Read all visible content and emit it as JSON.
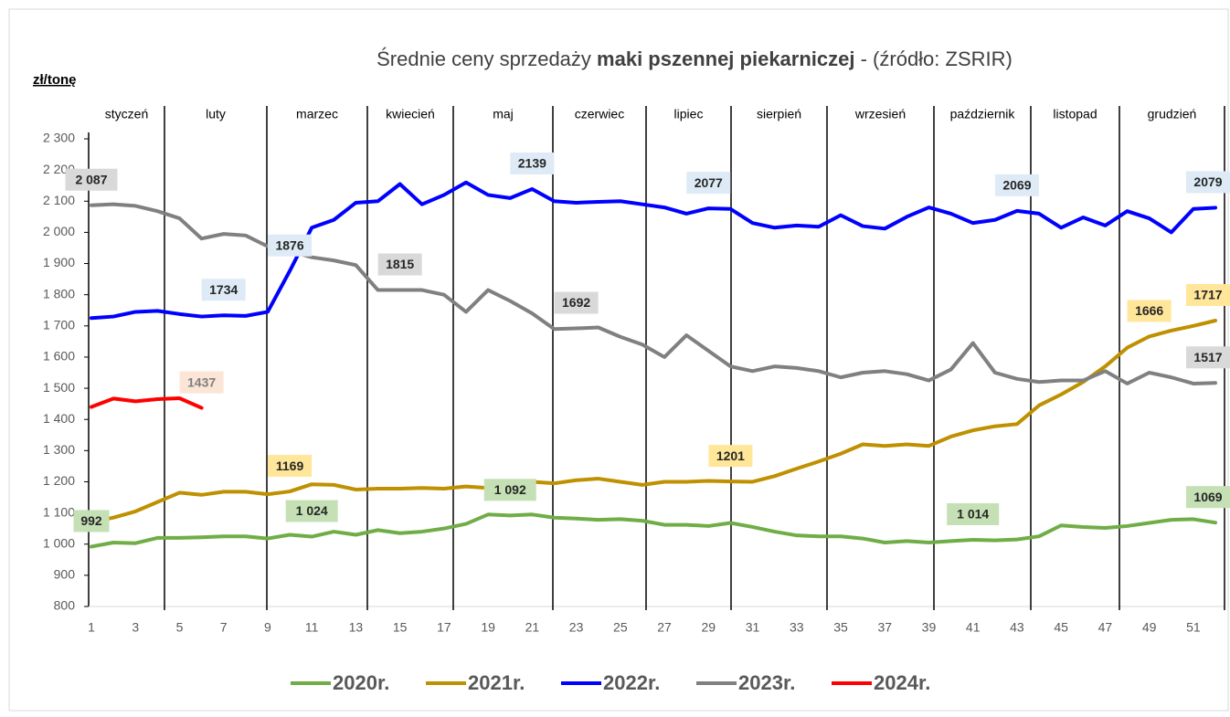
{
  "chart_data": {
    "type": "line",
    "title_parts": [
      "Średnie ceny sprzedaży ",
      "maki pszennej piekarniczej",
      " - (źródło: ZSRIR)"
    ],
    "y_label": "zł/tonę",
    "months": [
      "styczeń",
      "luty",
      "marzec",
      "kwiecień",
      "maj",
      "czerwiec",
      "lipiec",
      "sierpień",
      "wrzesień",
      "październik",
      "listopad",
      "grudzień"
    ],
    "x": [
      1,
      2,
      3,
      4,
      5,
      6,
      7,
      8,
      9,
      10,
      11,
      12,
      13,
      14,
      15,
      16,
      17,
      18,
      19,
      20,
      21,
      22,
      23,
      24,
      25,
      26,
      27,
      28,
      29,
      30,
      31,
      32,
      33,
      34,
      35,
      36,
      37,
      38,
      39,
      40,
      41,
      42,
      43,
      44,
      45,
      46,
      47,
      48,
      49,
      50,
      51,
      52
    ],
    "xlim": [
      1,
      52
    ],
    "xticks": [
      1,
      3,
      5,
      7,
      9,
      11,
      13,
      15,
      17,
      19,
      21,
      23,
      25,
      27,
      29,
      31,
      33,
      35,
      37,
      39,
      41,
      43,
      45,
      47,
      49,
      51
    ],
    "ylim": [
      800,
      2300
    ],
    "yticks": [
      800,
      900,
      {
        "value": 1000,
        "label": "1 000"
      },
      {
        "value": 1100,
        "label": "1 100"
      },
      {
        "value": 1200,
        "label": "1 200"
      },
      {
        "value": 1300,
        "label": "1 300"
      },
      {
        "value": 1400,
        "label": "1 400"
      },
      {
        "value": 1500,
        "label": "1 500"
      },
      {
        "value": 1600,
        "label": "1 600"
      },
      {
        "value": 1700,
        "label": "1 700"
      },
      {
        "value": 1800,
        "label": "1 800"
      },
      {
        "value": 1900,
        "label": "1 900"
      },
      {
        "value": 2000,
        "label": "2 000"
      },
      {
        "value": 2100,
        "label": "2 100"
      },
      {
        "value": 2200,
        "label": "2 200"
      },
      {
        "value": 2300,
        "label": "2 300"
      }
    ],
    "legend": "bottom",
    "series": [
      {
        "name": "2020r.",
        "color": "#70ad47",
        "label_bg": "#c5e0b4",
        "values": [
          992,
          1005,
          1003,
          1020,
          1020,
          1022,
          1025,
          1025,
          1018,
          1030,
          1024,
          1040,
          1030,
          1045,
          1035,
          1040,
          1050,
          1065,
          1095,
          1092,
          1095,
          1085,
          1082,
          1078,
          1080,
          1075,
          1062,
          1062,
          1058,
          1068,
          1055,
          1040,
          1028,
          1025,
          1025,
          1018,
          1005,
          1010,
          1005,
          1010,
          1014,
          1012,
          1015,
          1025,
          1060,
          1055,
          1052,
          1058,
          1068,
          1078,
          1080,
          1069
        ],
        "value_labels": [
          "992",
          null,
          null,
          null,
          null,
          null,
          null,
          null,
          null,
          null,
          "1 024",
          null,
          null,
          null,
          null,
          null,
          null,
          null,
          null,
          "1 092",
          null,
          null,
          null,
          null,
          null,
          null,
          null,
          null,
          null,
          null,
          null,
          null,
          null,
          null,
          null,
          null,
          null,
          null,
          null,
          null,
          "1 014",
          null,
          null,
          null,
          null,
          null,
          null,
          null,
          null,
          null,
          null,
          "1069"
        ]
      },
      {
        "name": "2021r.",
        "color": "#bf9000",
        "label_bg": "#ffe699",
        "values": [
          1070,
          1085,
          1105,
          1135,
          1165,
          1158,
          1168,
          1168,
          1160,
          1169,
          1192,
          1190,
          1175,
          1178,
          1178,
          1180,
          1178,
          1185,
          1180,
          1195,
          1200,
          1195,
          1205,
          1210,
          1200,
          1190,
          1200,
          1200,
          1203,
          1201,
          1200,
          1218,
          1242,
          1265,
          1290,
          1320,
          1315,
          1320,
          1315,
          1345,
          1365,
          1378,
          1385,
          1445,
          1480,
          1520,
          1570,
          1630,
          1666,
          1685,
          1700,
          1717
        ],
        "value_labels": [
          null,
          null,
          null,
          null,
          null,
          null,
          null,
          null,
          null,
          "1169",
          null,
          null,
          null,
          null,
          null,
          null,
          null,
          null,
          null,
          null,
          null,
          null,
          null,
          null,
          null,
          null,
          null,
          null,
          null,
          "1201",
          null,
          null,
          null,
          null,
          null,
          null,
          null,
          null,
          null,
          null,
          null,
          null,
          null,
          null,
          null,
          null,
          null,
          null,
          "1666",
          null,
          null,
          "1717"
        ]
      },
      {
        "name": "2022r.",
        "color": "#0000ff",
        "label_bg": "#deebf7",
        "values": [
          1725,
          1730,
          1745,
          1748,
          1738,
          1730,
          1734,
          1732,
          1745,
          1876,
          2015,
          2040,
          2095,
          2100,
          2155,
          2090,
          2120,
          2160,
          2120,
          2110,
          2139,
          2100,
          2095,
          2098,
          2100,
          2090,
          2080,
          2060,
          2077,
          2075,
          2030,
          2015,
          2022,
          2018,
          2055,
          2020,
          2012,
          2050,
          2080,
          2060,
          2030,
          2040,
          2069,
          2060,
          2015,
          2048,
          2022,
          2068,
          2045,
          2000,
          2075,
          2079
        ],
        "value_labels": [
          null,
          null,
          null,
          null,
          null,
          null,
          "1734",
          null,
          null,
          "1876",
          null,
          null,
          null,
          null,
          null,
          null,
          null,
          null,
          null,
          null,
          "2139",
          null,
          null,
          null,
          null,
          null,
          null,
          null,
          "2077",
          null,
          null,
          null,
          null,
          null,
          null,
          null,
          null,
          null,
          null,
          null,
          null,
          null,
          "2069",
          null,
          null,
          null,
          null,
          null,
          null,
          null,
          null,
          "2079"
        ]
      },
      {
        "name": "2023r.",
        "color": "#808080",
        "label_bg": "#d9d9d9",
        "values": [
          2087,
          2090,
          2085,
          2068,
          2045,
          1980,
          1995,
          1990,
          1955,
          1940,
          1920,
          1910,
          1895,
          1815,
          1815,
          1815,
          1800,
          1745,
          1815,
          1780,
          1740,
          1690,
          1692,
          1695,
          1665,
          1640,
          1600,
          1670,
          1620,
          1570,
          1555,
          1570,
          1565,
          1555,
          1535,
          1550,
          1555,
          1545,
          1525,
          1560,
          1645,
          1550,
          1530,
          1520,
          1525,
          1525,
          1555,
          1515,
          1550,
          1535,
          1515,
          1517
        ],
        "value_labels": [
          "2 087",
          null,
          null,
          null,
          null,
          null,
          null,
          null,
          null,
          null,
          null,
          null,
          null,
          null,
          "1815",
          null,
          null,
          null,
          null,
          null,
          null,
          null,
          "1692",
          null,
          null,
          null,
          null,
          null,
          null,
          null,
          null,
          null,
          null,
          null,
          null,
          null,
          null,
          null,
          null,
          null,
          null,
          null,
          null,
          null,
          null,
          null,
          null,
          null,
          null,
          null,
          null,
          "1517"
        ]
      },
      {
        "name": "2024r.",
        "color": "#ff0000",
        "label_bg": "#fbe5d6",
        "values": [
          1440,
          1467,
          1458,
          1465,
          1468,
          1437,
          null,
          null,
          null,
          null,
          null,
          null,
          null,
          null,
          null,
          null,
          null,
          null,
          null,
          null,
          null,
          null,
          null,
          null,
          null,
          null,
          null,
          null,
          null,
          null,
          null,
          null,
          null,
          null,
          null,
          null,
          null,
          null,
          null,
          null,
          null,
          null,
          null,
          null,
          null,
          null,
          null,
          null,
          null,
          null,
          null,
          null
        ],
        "value_labels": [
          null,
          null,
          null,
          null,
          null,
          "1437",
          null,
          null,
          null,
          null,
          null,
          null,
          null,
          null,
          null,
          null,
          null,
          null,
          null,
          null,
          null,
          null,
          null,
          null,
          null,
          null,
          null,
          null,
          null,
          null,
          null,
          null,
          null,
          null,
          null,
          null,
          null,
          null,
          null,
          null,
          null,
          null,
          null,
          null,
          null,
          null,
          null,
          null,
          null,
          null,
          null,
          null
        ]
      }
    ]
  }
}
